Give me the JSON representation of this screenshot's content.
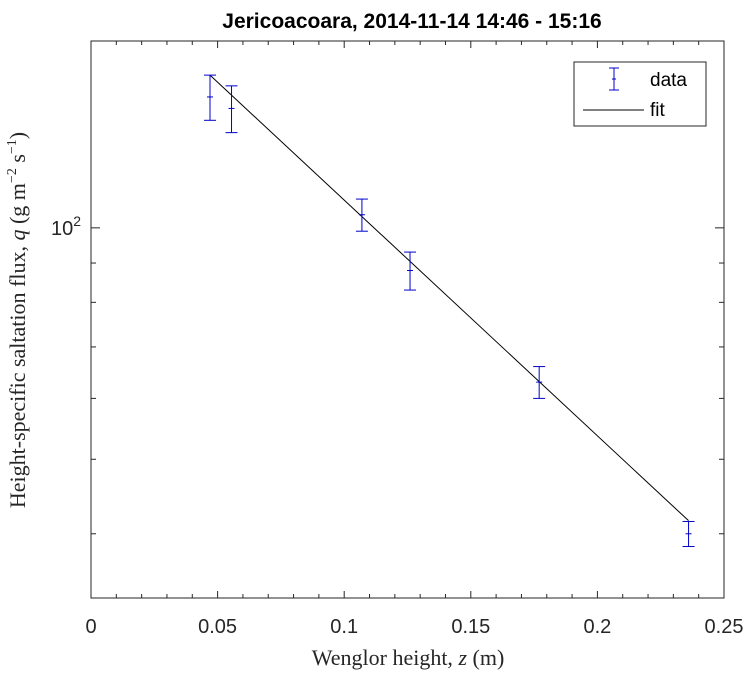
{
  "chart_data": {
    "type": "scatter",
    "title": "Jericoacoara, 2014-11-14 14:46 - 15:16",
    "xlabel": "Wenglor height, z (m)",
    "ylabel": "Height-specific saltation flux, q (g m⁻² s⁻¹)",
    "xlim": [
      0,
      0.25
    ],
    "ylim": [
      33,
      175
    ],
    "yscale": "log",
    "x_ticks": [
      0,
      0.05,
      0.1,
      0.15,
      0.2,
      0.25
    ],
    "x_tick_labels": [
      "0",
      "0.05",
      "0.1",
      "0.15",
      "0.2",
      "0.25"
    ],
    "y_ticks": [
      100
    ],
    "y_tick_labels": [
      "10²"
    ],
    "grid": false,
    "legend": {
      "position": "top-right",
      "entries": [
        "data",
        "fit"
      ]
    },
    "series": [
      {
        "name": "data",
        "style": "errorbar",
        "color": "#0000cc",
        "x": [
          0.047,
          0.0555,
          0.107,
          0.126,
          0.177,
          0.236
        ],
        "y": [
          148,
          143,
          104,
          88,
          63,
          40
        ],
        "err_low": [
          10,
          10,
          5,
          5,
          3,
          1.5
        ],
        "err_high": [
          10,
          10,
          5,
          5,
          3,
          1.5
        ]
      },
      {
        "name": "fit",
        "style": "line",
        "color": "#000000",
        "x": [
          0.047,
          0.236
        ],
        "y": [
          158,
          41.6
        ]
      }
    ]
  }
}
